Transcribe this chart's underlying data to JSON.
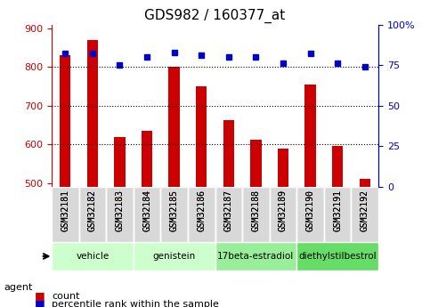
{
  "title": "GDS982 / 160377_at",
  "samples": [
    "GSM32181",
    "GSM32182",
    "GSM32183",
    "GSM32184",
    "GSM32185",
    "GSM32186",
    "GSM32187",
    "GSM32188",
    "GSM32189",
    "GSM32190",
    "GSM32191",
    "GSM32192"
  ],
  "counts": [
    830,
    870,
    618,
    634,
    800,
    750,
    662,
    612,
    588,
    754,
    596,
    510
  ],
  "percentiles": [
    82,
    82,
    75,
    80,
    83,
    81,
    80,
    80,
    76,
    82,
    76,
    74
  ],
  "groups": [
    {
      "label": "vehicle",
      "start": 0,
      "end": 3,
      "color": "#ccffcc"
    },
    {
      "label": "genistein",
      "start": 3,
      "end": 6,
      "color": "#ccffcc"
    },
    {
      "label": "17beta-estradiol",
      "start": 6,
      "end": 9,
      "color": "#99ff99"
    },
    {
      "label": "diethylstilbestrol",
      "start": 9,
      "end": 12,
      "color": "#66ff66"
    }
  ],
  "ylim_left": [
    490,
    910
  ],
  "ylim_right": [
    0,
    100
  ],
  "yticks_left": [
    500,
    600,
    700,
    800,
    900
  ],
  "yticks_right": [
    0,
    25,
    50,
    75,
    100
  ],
  "bar_color": "#cc0000",
  "dot_color": "#0000cc",
  "bar_width": 0.4,
  "left_axis_color": "#cc0000",
  "right_axis_color": "#0000cc",
  "grid_color": "black",
  "background_color": "#f0f0f0",
  "plot_bg": "white"
}
